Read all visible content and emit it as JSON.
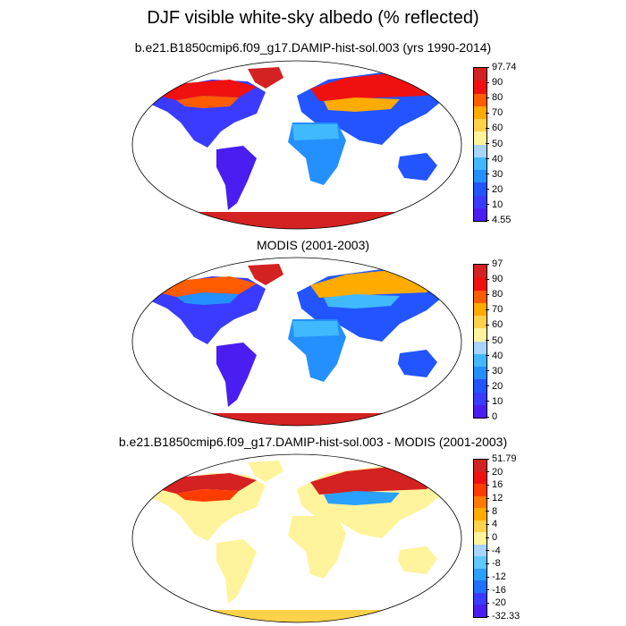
{
  "title": "DJF visible white-sky albedo (% reflected)",
  "panels": [
    {
      "title": "b.e21.B1850cmip6.f09_g17.DAMIP-hist-sol.003 (yrs 1990-2014)",
      "labels": [
        "97.74",
        "90",
        "80",
        "70",
        "60",
        "50",
        "40",
        "30",
        "20",
        "10",
        "4.55"
      ],
      "colors": [
        "#d42121",
        "#f01010",
        "#ff5c00",
        "#ffab00",
        "#ffd24a",
        "#fff39c",
        "#a8d5ff",
        "#41b9ff",
        "#2490ff",
        "#2255ff",
        "#3b3bff",
        "#4a1df0"
      ]
    },
    {
      "title": "MODIS (2001-2003)",
      "labels": [
        "97",
        "90",
        "80",
        "70",
        "60",
        "50",
        "40",
        "30",
        "20",
        "10",
        "0"
      ],
      "colors": [
        "#d42121",
        "#f01010",
        "#ff5c00",
        "#ffab00",
        "#ffd24a",
        "#fff39c",
        "#a8d5ff",
        "#41b9ff",
        "#2490ff",
        "#2255ff",
        "#3b3bff",
        "#4a1df0"
      ]
    },
    {
      "title": "b.e21.B1850cmip6.f09_g17.DAMIP-hist-sol.003 - MODIS (2001-2003)",
      "labels": [
        "51.79",
        "20",
        "16",
        "12",
        "8",
        "4",
        "0",
        "-4",
        "-8",
        "-12",
        "-16",
        "-20",
        "-32.33"
      ],
      "colors": [
        "#d42121",
        "#f01010",
        "#ff3c00",
        "#ff7a00",
        "#ffab00",
        "#ffd24a",
        "#fff39c",
        "#a8d5ff",
        "#5ec8ff",
        "#2aa0ff",
        "#2270ff",
        "#3b3bff",
        "#4a1df0"
      ]
    }
  ]
}
